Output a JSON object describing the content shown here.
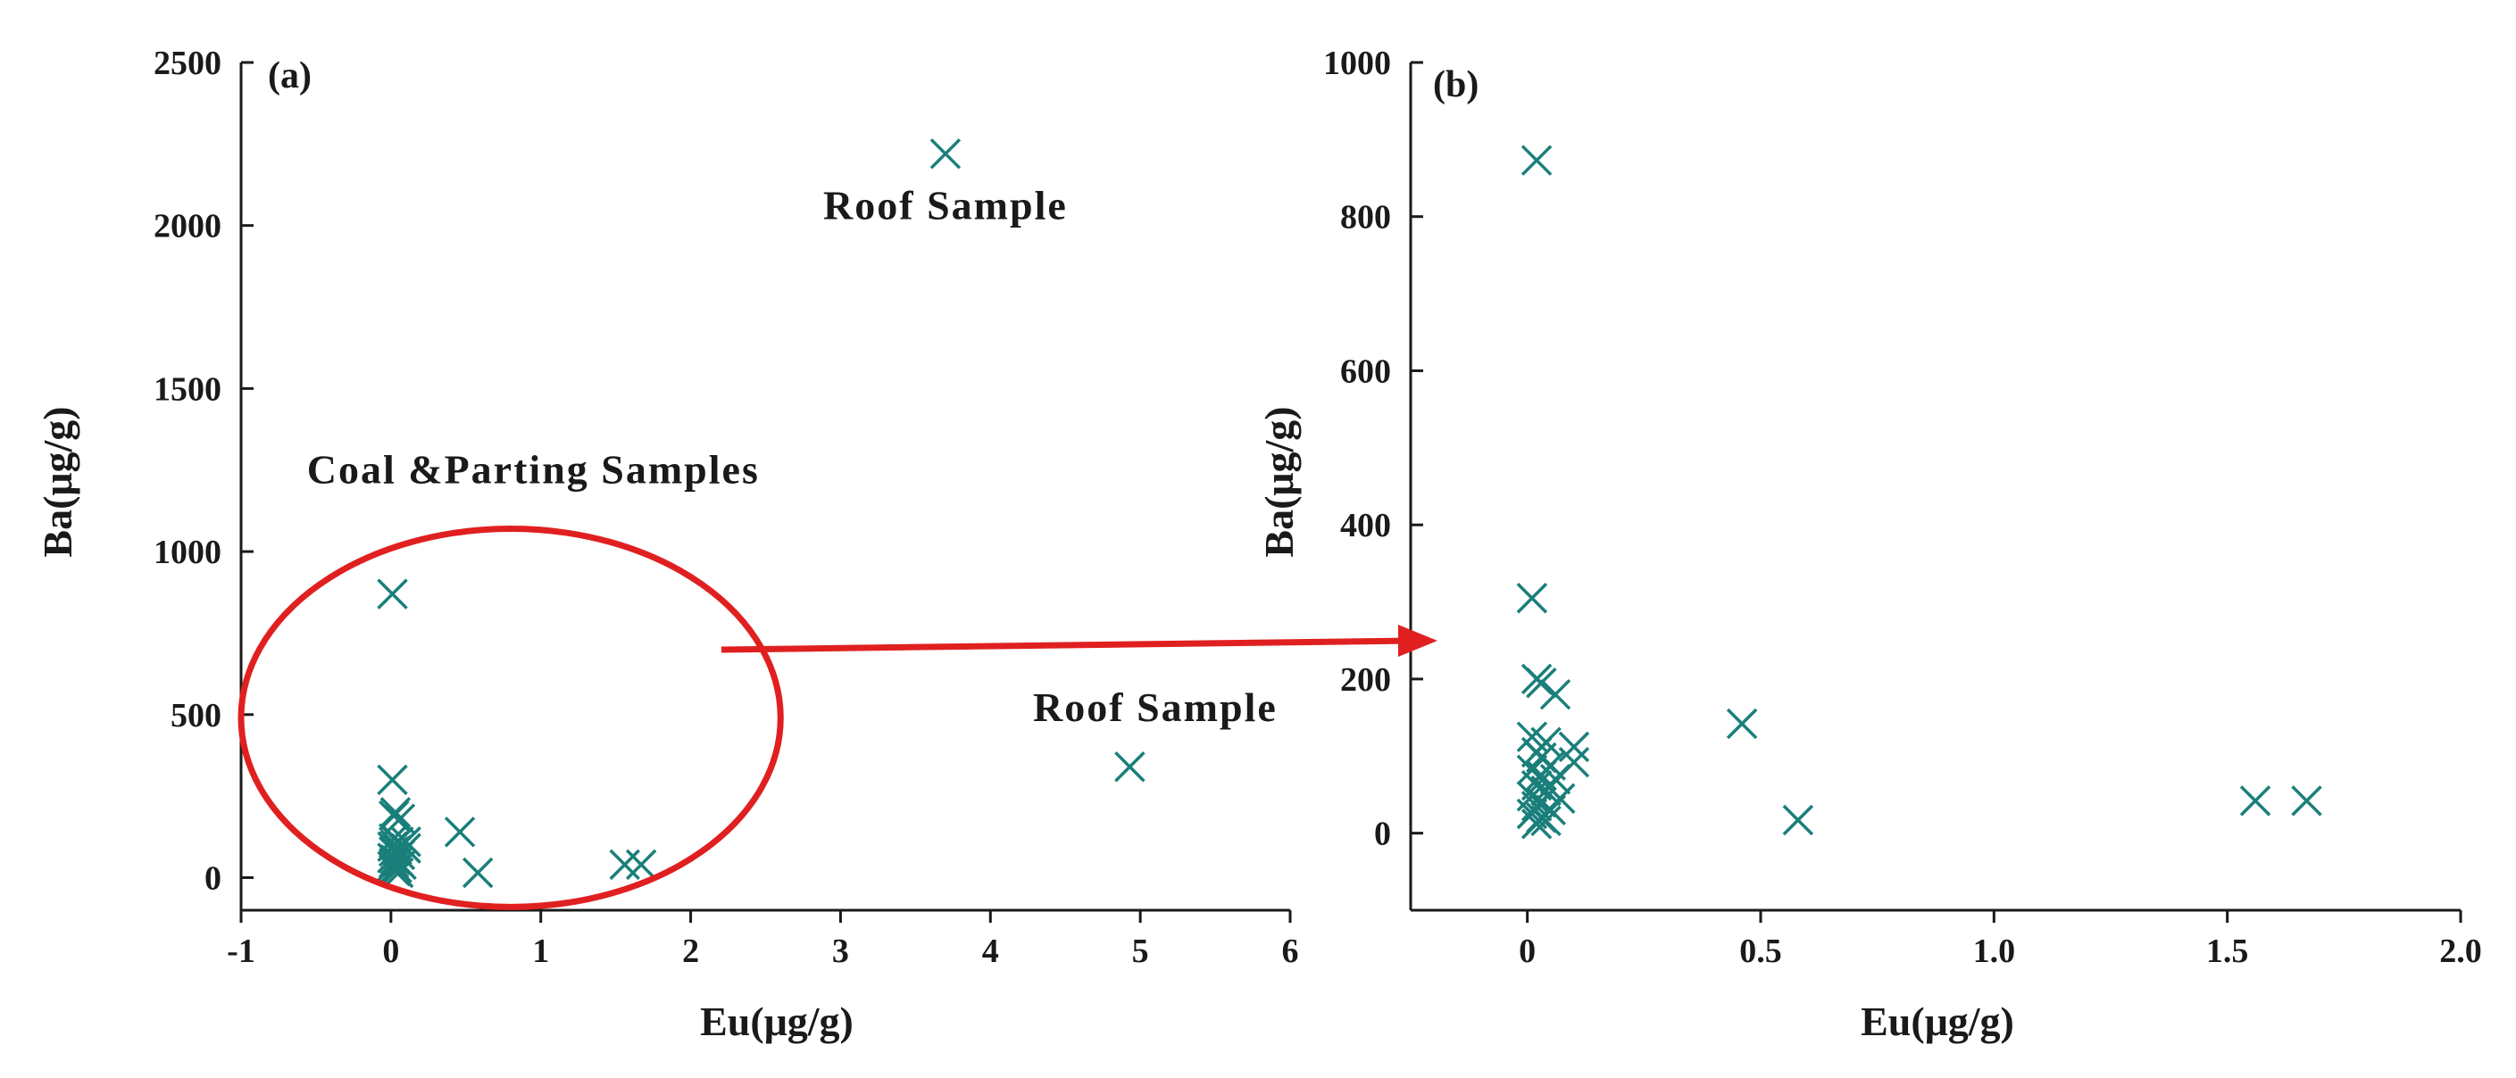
{
  "chart_data": [
    {
      "type": "scatter",
      "panel_label": "(a)",
      "xlabel": "Eu(μg/g)",
      "ylabel": "Ba(μg/g)",
      "xlim": [
        -1,
        6
      ],
      "ylim": [
        -100,
        2500
      ],
      "xticks": [
        -1,
        0,
        1,
        2,
        3,
        4,
        5,
        6
      ],
      "yticks": [
        0,
        500,
        1000,
        1500,
        2000,
        2500
      ],
      "marker": "x",
      "marker_color": "#1a7f7a",
      "annotations": [
        {
          "text": "Roof Sample",
          "x": 3.7,
          "y": 2020
        },
        {
          "text": "Roof Sample",
          "x": 5.1,
          "y": 480
        },
        {
          "text": "Coal &Parting Samples",
          "x": 0.95,
          "y": 1210
        }
      ],
      "highlight": {
        "shape": "ellipse",
        "color": "#e02020",
        "center": [
          0.8,
          490
        ],
        "radius": [
          1.8,
          580
        ]
      },
      "arrow": {
        "color": "#e02020",
        "from_panel": "(a)",
        "to_panel": "(b)"
      },
      "points": [
        {
          "x": 3.7,
          "y": 2220
        },
        {
          "x": 4.93,
          "y": 340
        },
        {
          "x": 0.01,
          "y": 870
        },
        {
          "x": 0.01,
          "y": 300
        },
        {
          "x": 0.03,
          "y": 200
        },
        {
          "x": 0.02,
          "y": 190
        },
        {
          "x": 0.06,
          "y": 180
        },
        {
          "x": 0.46,
          "y": 140
        },
        {
          "x": 0.58,
          "y": 15
        },
        {
          "x": 1.56,
          "y": 40
        },
        {
          "x": 1.67,
          "y": 40
        },
        {
          "x": 0.02,
          "y": 120
        },
        {
          "x": 0.05,
          "y": 110
        },
        {
          "x": 0.1,
          "y": 110
        },
        {
          "x": 0.03,
          "y": 100
        },
        {
          "x": 0.01,
          "y": 95
        },
        {
          "x": 0.1,
          "y": 90
        },
        {
          "x": 0.04,
          "y": 85
        },
        {
          "x": 0.02,
          "y": 80
        },
        {
          "x": 0.06,
          "y": 70
        },
        {
          "x": 0.01,
          "y": 60
        },
        {
          "x": 0.03,
          "y": 55
        },
        {
          "x": 0.05,
          "y": 50
        },
        {
          "x": 0.02,
          "y": 45
        },
        {
          "x": 0.07,
          "y": 40
        },
        {
          "x": 0.01,
          "y": 35
        },
        {
          "x": 0.04,
          "y": 30
        },
        {
          "x": 0.02,
          "y": 25
        },
        {
          "x": 0.03,
          "y": 20
        },
        {
          "x": 0.05,
          "y": 15
        }
      ]
    },
    {
      "type": "scatter",
      "panel_label": "(b)",
      "xlabel": "Eu(μg/g)",
      "ylabel": "Ba(μg/g)",
      "xlim": [
        -0.25,
        2.0
      ],
      "ylim": [
        -100,
        1000
      ],
      "xticks": [
        0,
        0.5,
        1.0,
        1.5,
        2.0
      ],
      "xtick_labels": [
        "0",
        "0.5",
        "1.0",
        "1.5",
        "2.0"
      ],
      "yticks": [
        0,
        200,
        400,
        600,
        800,
        1000
      ],
      "marker": "x",
      "marker_color": "#1a7f7a",
      "points": [
        {
          "x": 0.02,
          "y": 873
        },
        {
          "x": 0.01,
          "y": 305
        },
        {
          "x": 0.02,
          "y": 200
        },
        {
          "x": 0.03,
          "y": 195
        },
        {
          "x": 0.06,
          "y": 180
        },
        {
          "x": 0.46,
          "y": 142
        },
        {
          "x": 0.58,
          "y": 17
        },
        {
          "x": 1.56,
          "y": 42
        },
        {
          "x": 1.67,
          "y": 42
        },
        {
          "x": 0.01,
          "y": 125
        },
        {
          "x": 0.04,
          "y": 118
        },
        {
          "x": 0.1,
          "y": 112
        },
        {
          "x": 0.02,
          "y": 105
        },
        {
          "x": 0.03,
          "y": 98
        },
        {
          "x": 0.1,
          "y": 92
        },
        {
          "x": 0.05,
          "y": 88
        },
        {
          "x": 0.01,
          "y": 82
        },
        {
          "x": 0.03,
          "y": 75
        },
        {
          "x": 0.06,
          "y": 70
        },
        {
          "x": 0.02,
          "y": 62
        },
        {
          "x": 0.04,
          "y": 55
        },
        {
          "x": 0.01,
          "y": 48
        },
        {
          "x": 0.07,
          "y": 45
        },
        {
          "x": 0.03,
          "y": 40
        },
        {
          "x": 0.02,
          "y": 35
        },
        {
          "x": 0.05,
          "y": 30
        },
        {
          "x": 0.01,
          "y": 25
        },
        {
          "x": 0.03,
          "y": 20
        },
        {
          "x": 0.04,
          "y": 16
        },
        {
          "x": 0.02,
          "y": 12
        }
      ]
    }
  ]
}
